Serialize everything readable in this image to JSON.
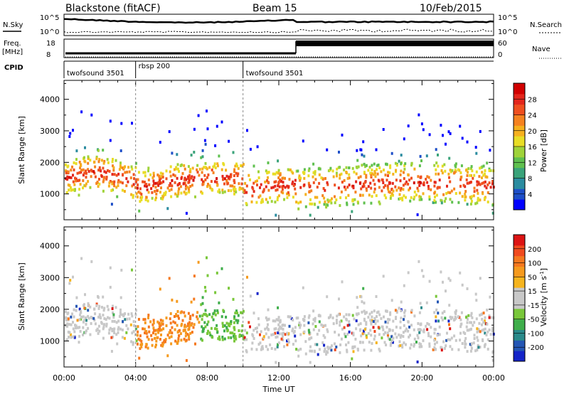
{
  "header": {
    "station": "Blackstone (fitACF)",
    "beam": "Beam 15",
    "date": "10/Feb/2015"
  },
  "status_panels": {
    "nsky_label": "N.Sky",
    "nsky_ticks": [
      "10^5",
      "10^0"
    ],
    "nsearch_label": "N.Search",
    "freq_label": "Freq.",
    "freq_unit": "[MHz]",
    "freq_ticks": [
      "18",
      "8"
    ],
    "nave_label": "Nave",
    "nave_ticks": [
      "60",
      "0"
    ],
    "cpid_label": "CPID",
    "cpid_segments": [
      {
        "label": "twofsound 3501",
        "start_hour": 0
      },
      {
        "label": "rbsp 200",
        "start_hour": 4
      },
      {
        "label": "twofsound 3501",
        "start_hour": 10
      }
    ]
  },
  "chart_data": [
    {
      "type": "heatmap",
      "name": "power",
      "ylabel": "Slant Range [km]",
      "xlabel": "Time UT",
      "x_ticks": [
        "00:00",
        "04:00",
        "08:00",
        "12:00",
        "16:00",
        "20:00",
        "00:00"
      ],
      "y_ticks": [
        1000,
        2000,
        3000,
        4000
      ],
      "xlim_hours": [
        0,
        24
      ],
      "ylim_km": [
        180,
        4600
      ],
      "colorbar": {
        "label": "Power [dB]",
        "ticks": [
          "28",
          "24",
          "20",
          "16",
          "12",
          "8",
          "4"
        ],
        "colors": [
          "#0000ff",
          "#1e4fc8",
          "#2b8ca0",
          "#3aa37a",
          "#5fc04f",
          "#9fd33a",
          "#e8dd26",
          "#f5b01e",
          "#f58220",
          "#ef4f1f",
          "#e3261c",
          "#d10000"
        ]
      }
    },
    {
      "type": "heatmap",
      "name": "velocity",
      "ylabel": "Slant Range [km]",
      "xlabel": "Time UT",
      "x_ticks": [
        "00:00",
        "04:00",
        "08:00",
        "12:00",
        "16:00",
        "20:00",
        "00:00"
      ],
      "y_ticks": [
        1000,
        2000,
        3000,
        4000
      ],
      "xlim_hours": [
        0,
        24
      ],
      "ylim_km": [
        180,
        4600
      ],
      "colorbar": {
        "label": "Velocity [m s",
        "label_sup": "-1",
        "label_end": "]",
        "ticks": [
          "200",
          "100",
          "50",
          "15",
          "-15",
          "-50",
          "-100",
          "-200"
        ],
        "colors": [
          "#1424c8",
          "#2456b4",
          "#2a8a8a",
          "#3fae4b",
          "#79c73a",
          "#c8c8c8",
          "#c8c8c8",
          "#f5b41e",
          "#f59a1e",
          "#f5781e",
          "#f04a1e",
          "#dc1414"
        ]
      }
    }
  ],
  "x_axis_title": "Time UT"
}
